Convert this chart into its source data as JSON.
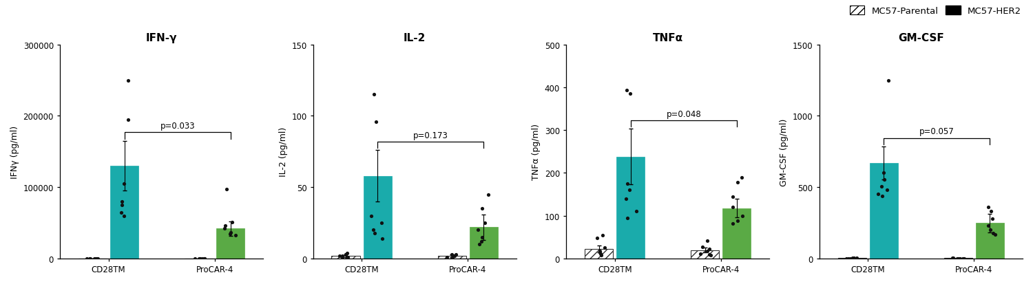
{
  "panels": [
    {
      "title": "IFN-γ",
      "ylabel": "IFNγ (pg/ml)",
      "ylim": [
        0,
        300000
      ],
      "yticks": [
        0,
        100000,
        200000,
        300000
      ],
      "yticklabels": [
        "0",
        "100000",
        "200000",
        "300000"
      ],
      "p_value": "p=0.033",
      "groups": [
        "CD28TM",
        "ProCAR-4"
      ],
      "parental_bars": [
        200,
        200
      ],
      "her2_bars": [
        130000,
        42000
      ],
      "parental_errors": [
        100,
        100
      ],
      "her2_errors": [
        35000,
        10000
      ],
      "parental_dots": [
        [
          0,
          0,
          0,
          0,
          0,
          0,
          0
        ],
        [
          0,
          0,
          0,
          0,
          0,
          0,
          0
        ]
      ],
      "her2_dots": [
        [
          250000,
          195000,
          105000,
          80000,
          75000,
          65000,
          60000
        ],
        [
          97000,
          51000,
          46000,
          42000,
          37000,
          35000,
          33000
        ]
      ]
    },
    {
      "title": "IL-2",
      "ylabel": "IL-2 (pg/ml)",
      "ylim": [
        0,
        150
      ],
      "yticks": [
        0,
        50,
        100,
        150
      ],
      "yticklabels": [
        "0",
        "50",
        "100",
        "150"
      ],
      "p_value": "p=0.173",
      "groups": [
        "CD28TM",
        "ProCAR-4"
      ],
      "parental_bars": [
        2,
        2
      ],
      "her2_bars": [
        58,
        22
      ],
      "parental_errors": [
        1,
        1
      ],
      "her2_errors": [
        18,
        9
      ],
      "parental_dots": [
        [
          4,
          3,
          3,
          2,
          2,
          1,
          1
        ],
        [
          3,
          3,
          2,
          2,
          1,
          1,
          0
        ]
      ],
      "her2_dots": [
        [
          115,
          96,
          30,
          25,
          20,
          18,
          14
        ],
        [
          45,
          35,
          25,
          20,
          15,
          12,
          10
        ]
      ]
    },
    {
      "title": "TNFα",
      "ylabel": "TNFα (pg/ml)",
      "ylim": [
        0,
        500
      ],
      "yticks": [
        0,
        100,
        200,
        300,
        400,
        500
      ],
      "yticklabels": [
        "0",
        "100",
        "200",
        "300",
        "400",
        "500"
      ],
      "p_value": "p=0.048",
      "groups": [
        "CD28TM",
        "ProCAR-4"
      ],
      "parental_bars": [
        22,
        20
      ],
      "her2_bars": [
        238,
        118
      ],
      "parental_errors": [
        8,
        6
      ],
      "her2_errors": [
        65,
        22
      ],
      "parental_dots": [
        [
          55,
          48,
          25,
          18,
          15,
          12,
          8
        ],
        [
          42,
          28,
          22,
          18,
          12,
          10,
          8
        ]
      ],
      "her2_dots": [
        [
          393,
          385,
          175,
          160,
          140,
          110,
          95
        ],
        [
          190,
          178,
          145,
          120,
          100,
          88,
          82
        ]
      ]
    },
    {
      "title": "GM-CSF",
      "ylabel": "GM-CSF (pg/ml)",
      "ylim": [
        0,
        1500
      ],
      "yticks": [
        0,
        500,
        1000,
        1500
      ],
      "yticklabels": [
        "0",
        "500",
        "1000",
        "1500"
      ],
      "p_value": "p=0.057",
      "groups": [
        "CD28TM",
        "ProCAR-4"
      ],
      "parental_bars": [
        3,
        3
      ],
      "her2_bars": [
        670,
        250
      ],
      "parental_errors": [
        1,
        1
      ],
      "her2_errors": [
        115,
        65
      ],
      "parental_dots": [
        [
          6,
          4,
          3,
          2,
          2,
          1,
          0
        ],
        [
          4,
          3,
          2,
          2,
          1,
          0,
          0
        ]
      ],
      "her2_dots": [
        [
          1250,
          600,
          555,
          505,
          480,
          455,
          440
        ],
        [
          360,
          330,
          280,
          230,
          200,
          180,
          170
        ]
      ]
    }
  ],
  "teal_color": "#1aabab",
  "green_color": "#5aaa45",
  "parental_hatch": "///",
  "bar_width": 0.32,
  "dot_color": "#111111",
  "dot_size": 14,
  "legend_parental": "MC57-Parental",
  "legend_her2": "MC57-HER2",
  "background_color": "#ffffff",
  "title_fontsize": 11,
  "label_fontsize": 9,
  "tick_fontsize": 8.5
}
